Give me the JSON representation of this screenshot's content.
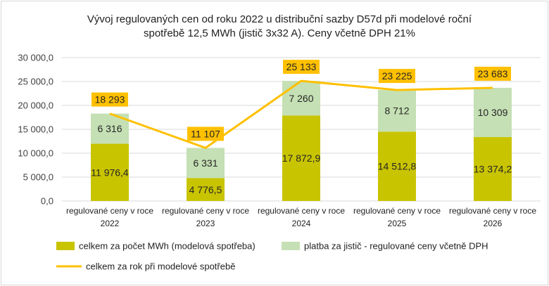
{
  "chart_data": {
    "type": "bar",
    "stacked": true,
    "title_lines": [
      "Vývoj regulovaných cen od roku 2022 u distribuční sazby D57d při modelové roční",
      "spotřebě 12,5 MWh (jistič 3x32 A). Ceny včetně DPH 21%"
    ],
    "categories": [
      [
        "regulované ceny v roce",
        "2022"
      ],
      [
        "regulované ceny v roce",
        "2023"
      ],
      [
        "regulované ceny v roce",
        "2024"
      ],
      [
        "regulované ceny v roce",
        "2025"
      ],
      [
        "regulované ceny v roce",
        "2026"
      ]
    ],
    "ylim": [
      0,
      30000
    ],
    "yticks": [
      0,
      5000,
      10000,
      15000,
      20000,
      25000,
      30000
    ],
    "ytick_labels": [
      "0,0",
      "5 000,0",
      "10 000,0",
      "15 000,0",
      "20 000,0",
      "25 000,0",
      "30 000,0"
    ],
    "grid": true,
    "legend_position": "bottom",
    "series": [
      {
        "name": "celkem za počet MWh (modelová spotřeba)",
        "kind": "bar",
        "color": "#c9c400",
        "values": [
          11976.4,
          4776.5,
          17872.9,
          14512.8,
          13374.2
        ],
        "labels": [
          "11 976,4",
          "4 776,5",
          "17 872,9",
          "14 512,8",
          "13 374,2"
        ]
      },
      {
        "name": "platba za jistič - regulované ceny včetně DPH",
        "kind": "bar",
        "color": "#c5e0b4",
        "values": [
          6316,
          6331,
          7260,
          8712,
          10309
        ],
        "labels": [
          "6 316",
          "6 331",
          "7 260",
          "8 712",
          "10 309"
        ]
      },
      {
        "name": "celkem za rok při modelové spotřebě",
        "kind": "line",
        "color": "#ffc000",
        "values": [
          18293,
          11107,
          25133,
          23225,
          23683
        ],
        "labels": [
          "18 293",
          "11 107",
          "25 133",
          "23 225",
          "23 683"
        ]
      }
    ]
  }
}
